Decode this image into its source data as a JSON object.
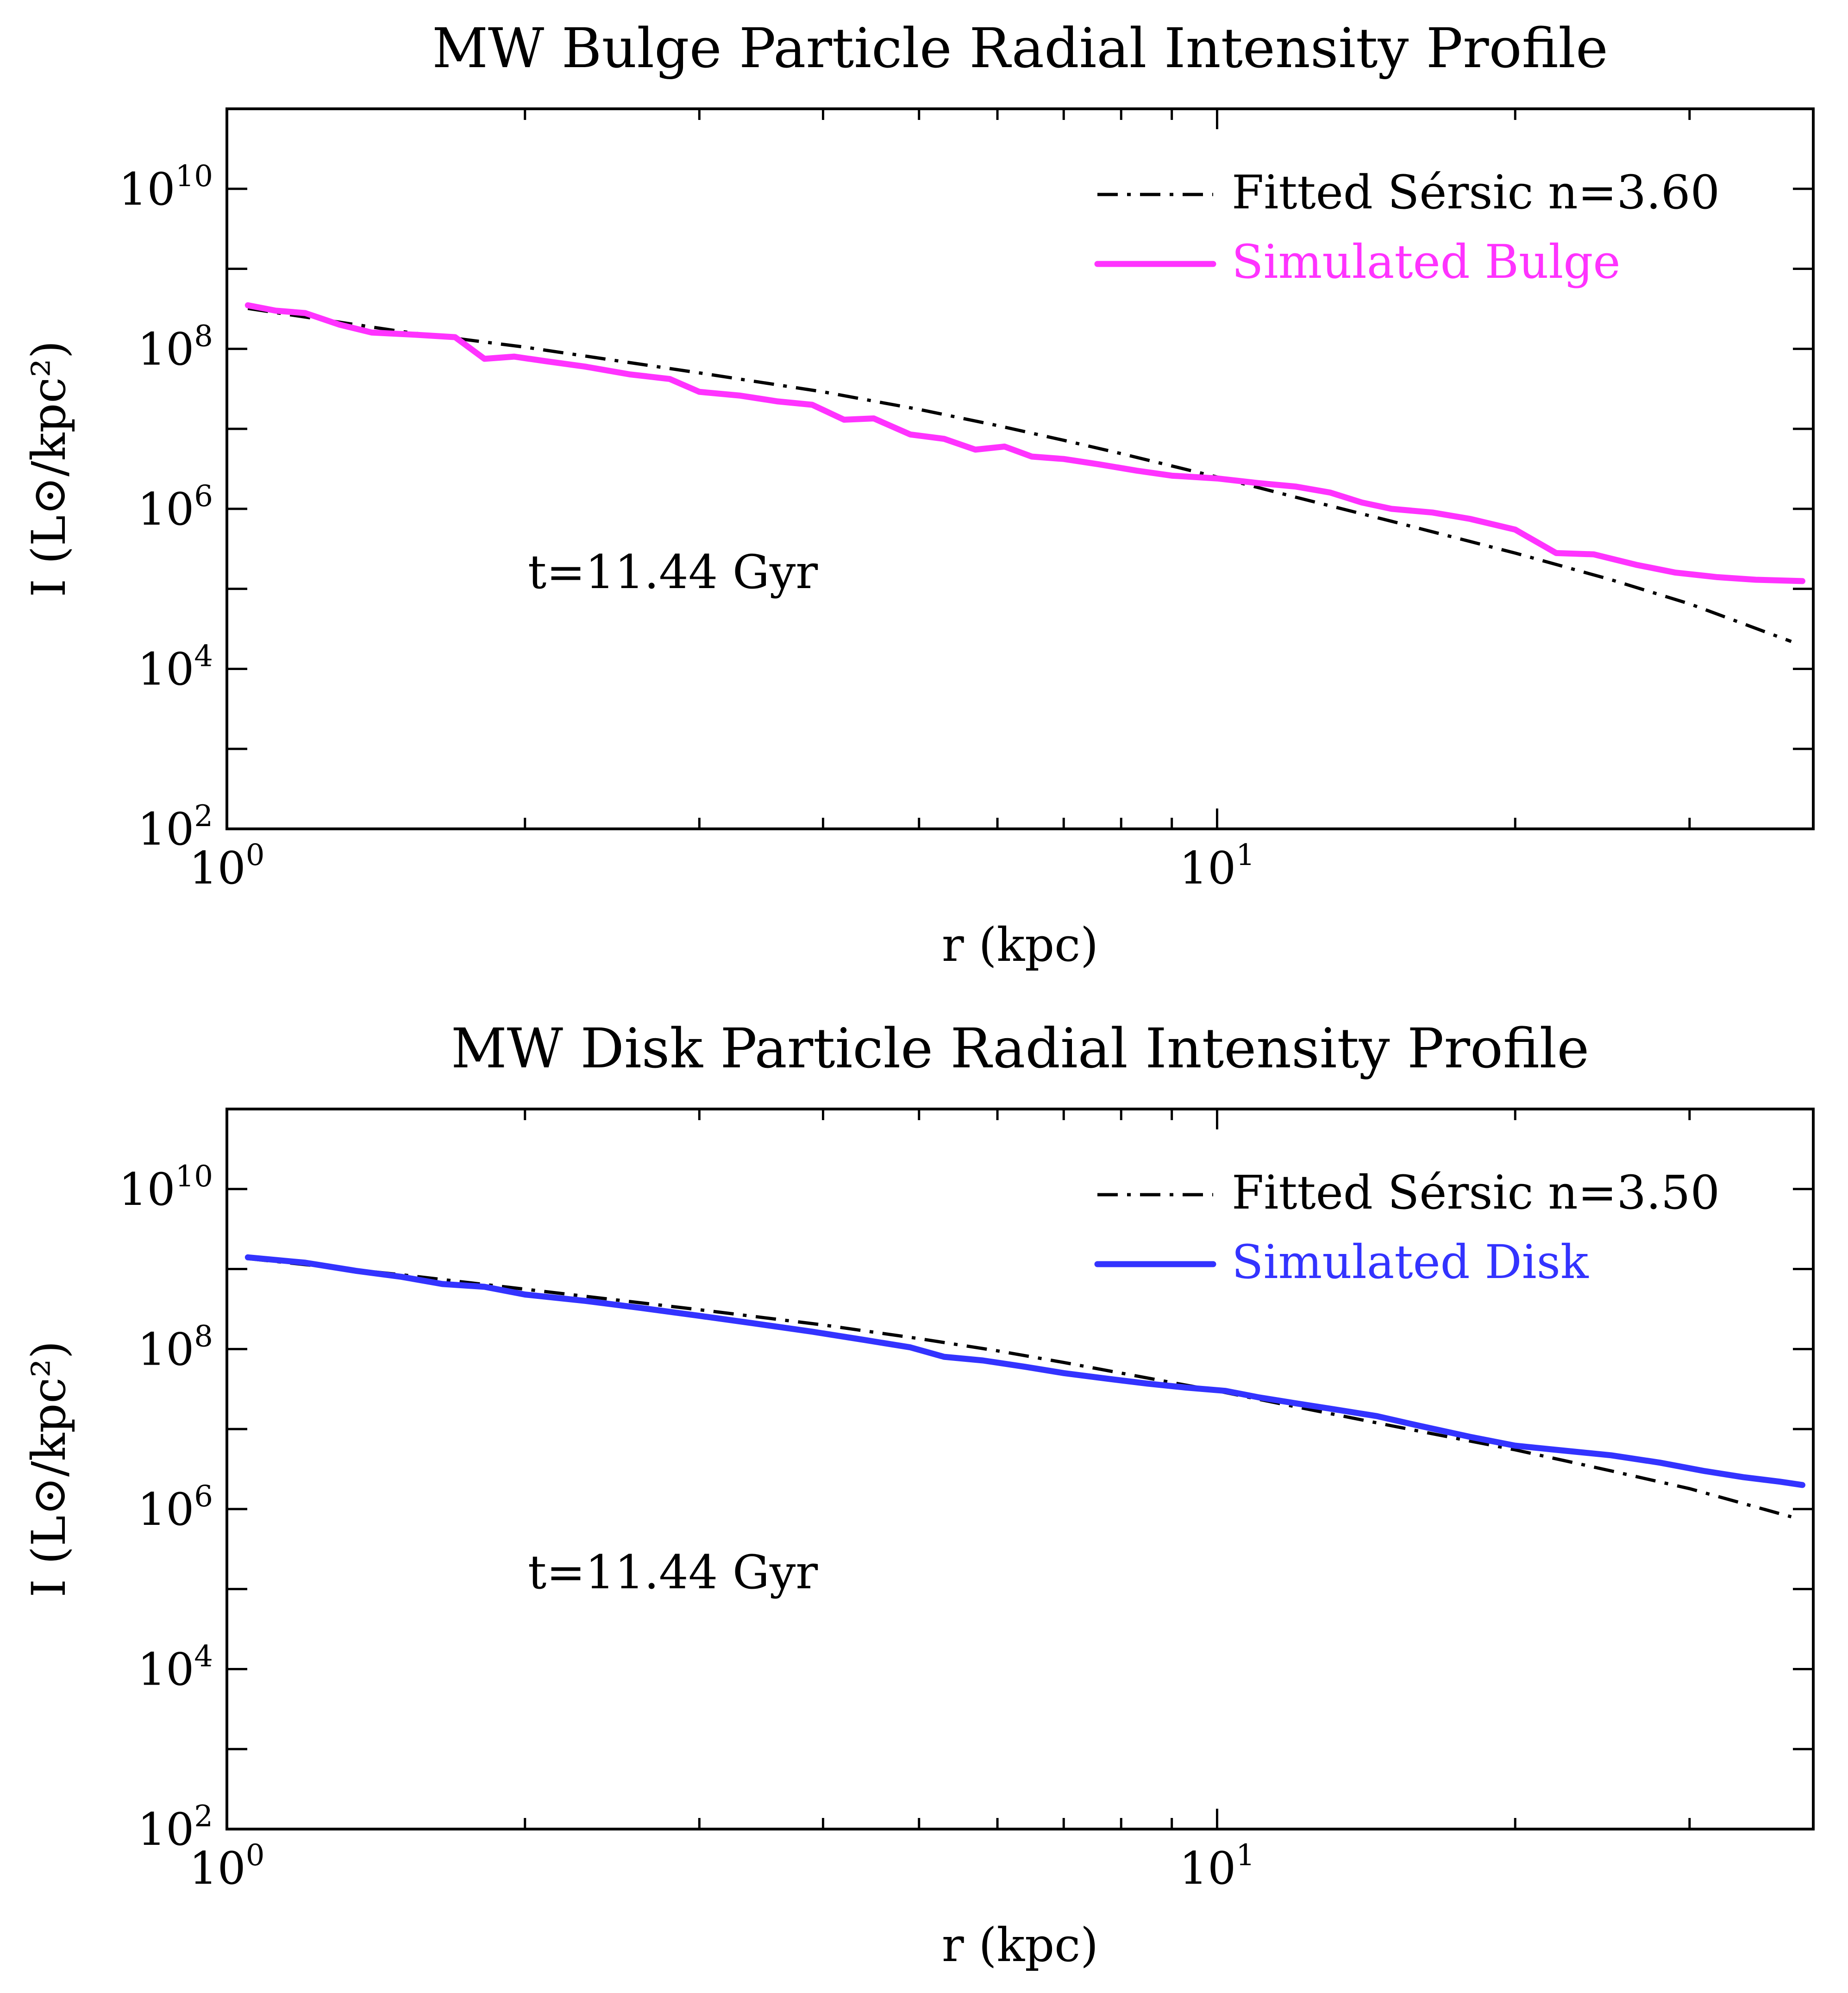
{
  "chart_data": [
    {
      "type": "line",
      "title": "MW Bulge Particle Radial Intensity Profile",
      "xlabel": "r (kpc)",
      "ylabel": "I (L⊙/kpc²)",
      "xscale": "log",
      "yscale": "log",
      "xlim": [
        1.0,
        40
      ],
      "ylim": [
        100,
        100000000000.0
      ],
      "x_ticks": [
        {
          "base": "10",
          "exp": "0",
          "value": 1
        },
        {
          "base": "10",
          "exp": "1",
          "value": 10
        }
      ],
      "y_ticks": [
        {
          "base": "10",
          "exp": "2",
          "value": 100
        },
        {
          "base": "10",
          "exp": "4",
          "value": 10000
        },
        {
          "base": "10",
          "exp": "6",
          "value": 1000000
        },
        {
          "base": "10",
          "exp": "8",
          "value": 100000000
        },
        {
          "base": "10",
          "exp": "10",
          "value": 10000000000
        }
      ],
      "annotation": "t=11.44 Gyr",
      "legend_position": "top-right",
      "series": [
        {
          "name": "Fitted Sérsic n=3.60",
          "style": "dash-dot",
          "color": "#000000",
          "x": [
            1.05,
            1.5,
            2.0,
            3.0,
            4.0,
            5.0,
            6.0,
            7.0,
            8.0,
            10.0,
            12.0,
            15.0,
            20.0,
            25.0,
            30.0,
            38.0
          ],
          "y": [
            320000000.0,
            165000000.0,
            105000000.0,
            50000000.0,
            29000000.0,
            17500000.0,
            11000000.0,
            7200000.0,
            4900000.0,
            2500000.0,
            1400000.0,
            700000.0,
            280000.0,
            130000.0,
            65000.0,
            22000.0
          ]
        },
        {
          "name": "Simulated Bulge",
          "style": "solid",
          "color": "#ff33ff",
          "x": [
            1.05,
            1.12,
            1.2,
            1.3,
            1.4,
            1.55,
            1.7,
            1.82,
            1.95,
            2.1,
            2.3,
            2.55,
            2.8,
            3.0,
            3.3,
            3.6,
            3.9,
            4.2,
            4.5,
            4.9,
            5.3,
            5.7,
            6.1,
            6.5,
            7.0,
            7.6,
            8.3,
            9.0,
            10.0,
            11.0,
            12.0,
            13.0,
            14.0,
            15.0,
            16.5,
            18.0,
            20.0,
            22.0,
            24.0,
            26.5,
            29.0,
            32.0,
            35.0,
            39.0
          ],
          "y": [
            350000000.0,
            300000000.0,
            280000000.0,
            200000000.0,
            160000000.0,
            150000000.0,
            140000000.0,
            75000000.0,
            80000000.0,
            70000000.0,
            60000000.0,
            48000000.0,
            42000000.0,
            29000000.0,
            26000000.0,
            22000000.0,
            20000000.0,
            13000000.0,
            13500000.0,
            8500000.0,
            7500000.0,
            5500000.0,
            6000000.0,
            4500000.0,
            4200000.0,
            3600000.0,
            3000000.0,
            2600000.0,
            2400000.0,
            2100000.0,
            1900000.0,
            1600000.0,
            1200000.0,
            1000000.0,
            900000.0,
            750000.0,
            550000.0,
            280000.0,
            270000.0,
            200000.0,
            160000.0,
            140000.0,
            130000.0,
            125000.0
          ]
        }
      ]
    },
    {
      "type": "line",
      "title": "MW Disk Particle Radial Intensity Profile",
      "xlabel": "r (kpc)",
      "ylabel": "I (L⊙/kpc²)",
      "xscale": "log",
      "yscale": "log",
      "xlim": [
        1.0,
        40
      ],
      "ylim": [
        100,
        100000000000.0
      ],
      "x_ticks": [
        {
          "base": "10",
          "exp": "0",
          "value": 1
        },
        {
          "base": "10",
          "exp": "1",
          "value": 10
        }
      ],
      "y_ticks": [
        {
          "base": "10",
          "exp": "2",
          "value": 100
        },
        {
          "base": "10",
          "exp": "4",
          "value": 10000
        },
        {
          "base": "10",
          "exp": "6",
          "value": 1000000
        },
        {
          "base": "10",
          "exp": "8",
          "value": 100000000
        },
        {
          "base": "10",
          "exp": "10",
          "value": 10000000000
        }
      ],
      "annotation": "t=11.44 Gyr",
      "legend_position": "top-right",
      "series": [
        {
          "name": "Fitted Sérsic n=3.50",
          "style": "dash-dot",
          "color": "#000000",
          "x": [
            1.05,
            1.5,
            2.0,
            3.0,
            4.0,
            5.0,
            6.0,
            7.0,
            8.0,
            10.0,
            12.0,
            15.0,
            20.0,
            25.0,
            30.0,
            38.0
          ],
          "y": [
            1350000000.0,
            850000000.0,
            560000000.0,
            310000000.0,
            200000000.0,
            135000000.0,
            95000000.0,
            68000000.0,
            50000000.0,
            30000000.0,
            19000000.0,
            11000000.0,
            5500000.0,
            3000000.0,
            1800000.0,
            800000.0
          ]
        },
        {
          "name": "Simulated Disk",
          "style": "solid",
          "color": "#3333ff",
          "x": [
            1.05,
            1.2,
            1.35,
            1.5,
            1.65,
            1.82,
            2.0,
            2.3,
            2.6,
            3.0,
            3.4,
            3.9,
            4.4,
            4.9,
            5.3,
            5.8,
            6.4,
            7.0,
            7.7,
            8.5,
            9.3,
            10.2,
            11.0,
            12.0,
            13.0,
            14.5,
            16.0,
            18.0,
            20.0,
            22.0,
            25.0,
            28.0,
            31.0,
            34.0,
            37.0,
            39.0
          ],
          "y": [
            1400000000.0,
            1200000000.0,
            950000000.0,
            800000000.0,
            650000000.0,
            600000000.0,
            480000000.0,
            400000000.0,
            330000000.0,
            260000000.0,
            210000000.0,
            165000000.0,
            130000000.0,
            105000000.0,
            80000000.0,
            72000000.0,
            60000000.0,
            50000000.0,
            43000000.0,
            37000000.0,
            33000000.0,
            30000000.0,
            25000000.0,
            21000000.0,
            18000000.0,
            14500000.0,
            11000000.0,
            8000000.0,
            6200000.0,
            5500000.0,
            4700000.0,
            3800000.0,
            3000000.0,
            2500000.0,
            2200000.0,
            2000000.0
          ]
        }
      ]
    }
  ]
}
